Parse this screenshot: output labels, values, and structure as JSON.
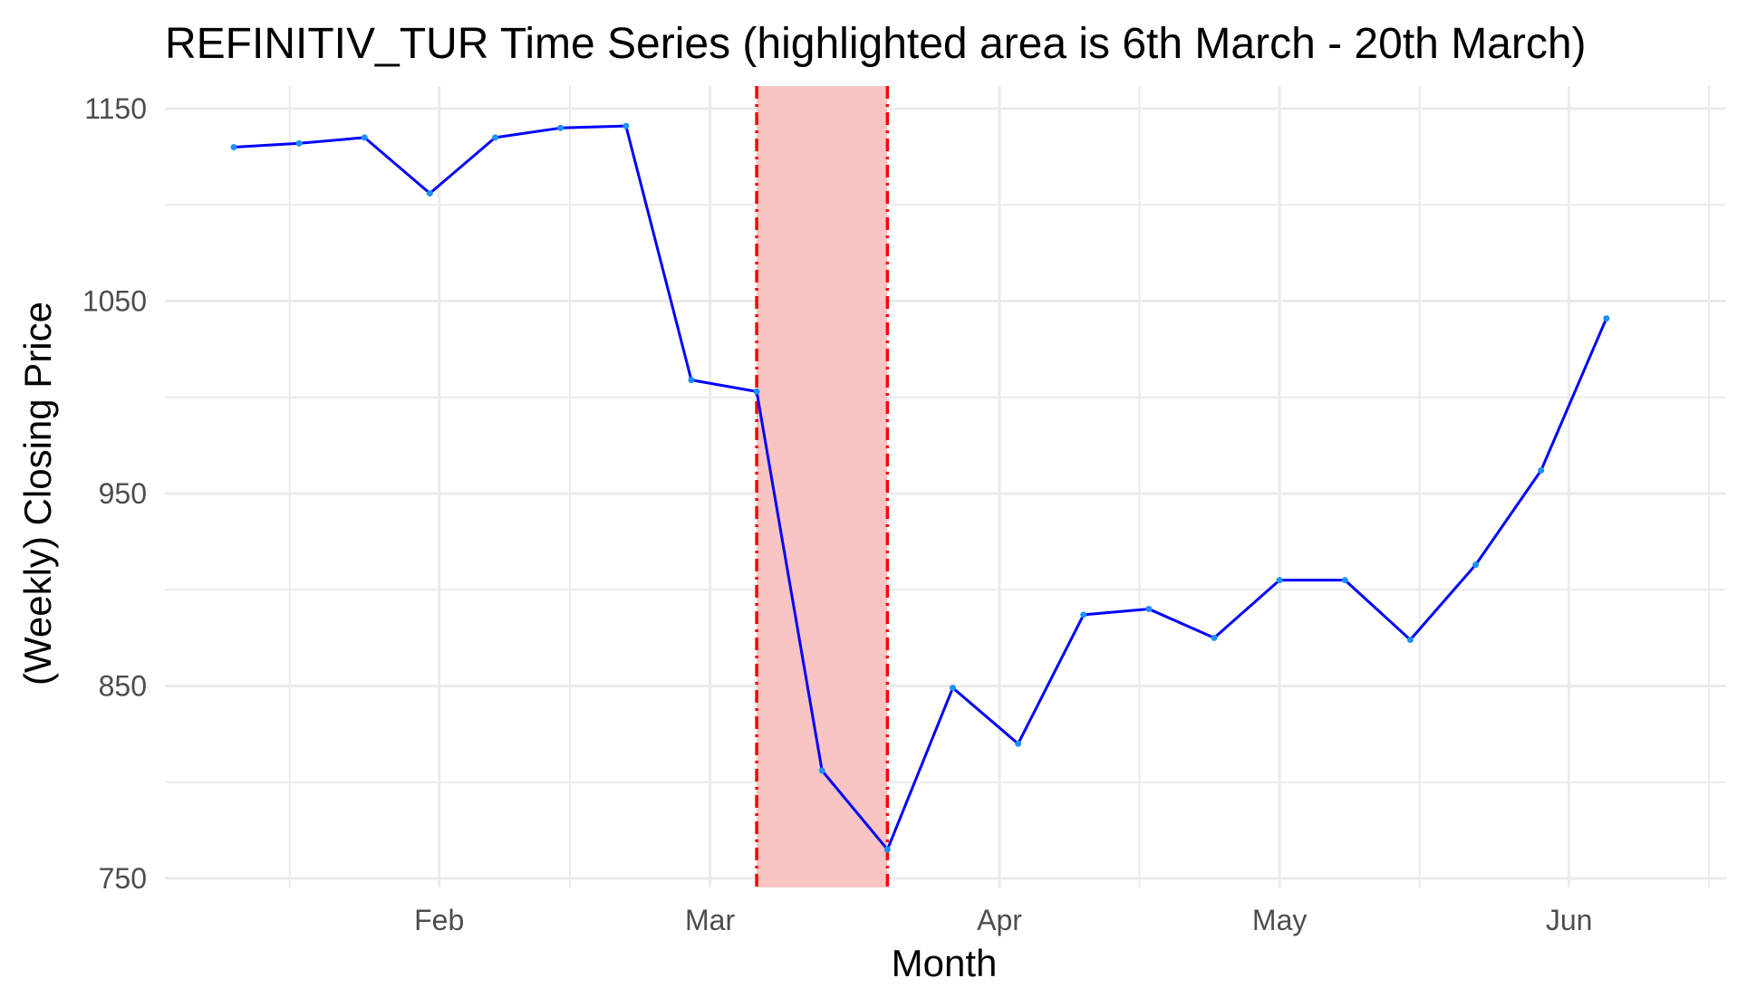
{
  "chart_data": {
    "type": "line",
    "title": "REFINITIV_TUR Time Series (highlighted area is 6th March - 20th March)",
    "xlabel": "Month",
    "ylabel": "(Weekly) Closing Price",
    "x_ticks": [
      "Feb",
      "Mar",
      "Apr",
      "May",
      "Jun"
    ],
    "y_ticks": [
      "1150",
      "1050",
      "950",
      "850",
      "750"
    ],
    "ylim": [
      740,
      1160
    ],
    "grid": true,
    "highlight": {
      "start": "2020-03-06",
      "end": "2020-03-20",
      "color": "#f8c4c4",
      "border_color": "#ff0000"
    },
    "line_color": "#0000ff",
    "point_color": "#1e90ff",
    "series": [
      {
        "x": [
          "2020-01-10",
          "2020-01-17",
          "2020-01-24",
          "2020-01-31",
          "2020-02-07",
          "2020-02-14",
          "2020-02-21",
          "2020-02-28",
          "2020-03-06",
          "2020-03-13",
          "2020-03-20",
          "2020-03-27",
          "2020-04-03",
          "2020-04-10",
          "2020-04-17",
          "2020-04-24",
          "2020-05-01",
          "2020-05-08",
          "2020-05-15",
          "2020-05-22",
          "2020-05-29",
          "2020-06-05"
        ],
        "values": [
          1130,
          1132,
          1135,
          1106,
          1135,
          1140,
          1141,
          1009,
          1003,
          806,
          765,
          849,
          820,
          887,
          890,
          875,
          905,
          905,
          874,
          913,
          962,
          1041
        ]
      }
    ]
  }
}
